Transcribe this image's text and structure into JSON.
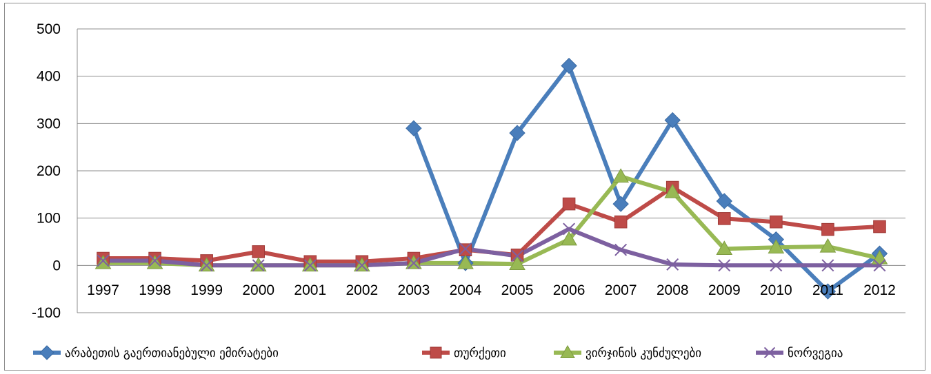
{
  "chart_data": {
    "type": "line",
    "title": "",
    "xlabel": "",
    "ylabel": "",
    "ylim": [
      -100,
      500
    ],
    "y_ticks": [
      "500",
      "400",
      "300",
      "200",
      "100",
      "0",
      "-100"
    ],
    "categories": [
      "1997",
      "1998",
      "1999",
      "2000",
      "2001",
      "2002",
      "2003",
      "2004",
      "2005",
      "2006",
      "2007",
      "2008",
      "2009",
      "2010",
      "2011",
      "2012"
    ],
    "grid": true,
    "legend_position": "bottom",
    "series": [
      {
        "name": "არაბეთის გაერთიანებული ემირატები",
        "color": "#4A7EBB",
        "marker": "diamond",
        "values": [
          null,
          null,
          null,
          null,
          null,
          null,
          290,
          5,
          280,
          422,
          130,
          307,
          136,
          55,
          -55,
          25
        ]
      },
      {
        "name": "თურქეთი",
        "color": "#BE4B48",
        "marker": "square",
        "values": [
          15,
          15,
          10,
          29,
          8,
          8,
          15,
          33,
          22,
          130,
          92,
          165,
          99,
          92,
          76,
          82
        ]
      },
      {
        "name": "ვირჯინის კუნძულები",
        "color": "#98B954",
        "marker": "triangle",
        "values": [
          5,
          5,
          0,
          0,
          0,
          0,
          5,
          5,
          3,
          55,
          188,
          155,
          35,
          38,
          40,
          15
        ]
      },
      {
        "name": "ნორვეგია",
        "color": "#7D60A0",
        "marker": "x",
        "values": [
          10,
          10,
          0,
          0,
          0,
          0,
          5,
          35,
          20,
          77,
          33,
          2,
          0,
          0,
          0,
          0
        ]
      }
    ]
  }
}
